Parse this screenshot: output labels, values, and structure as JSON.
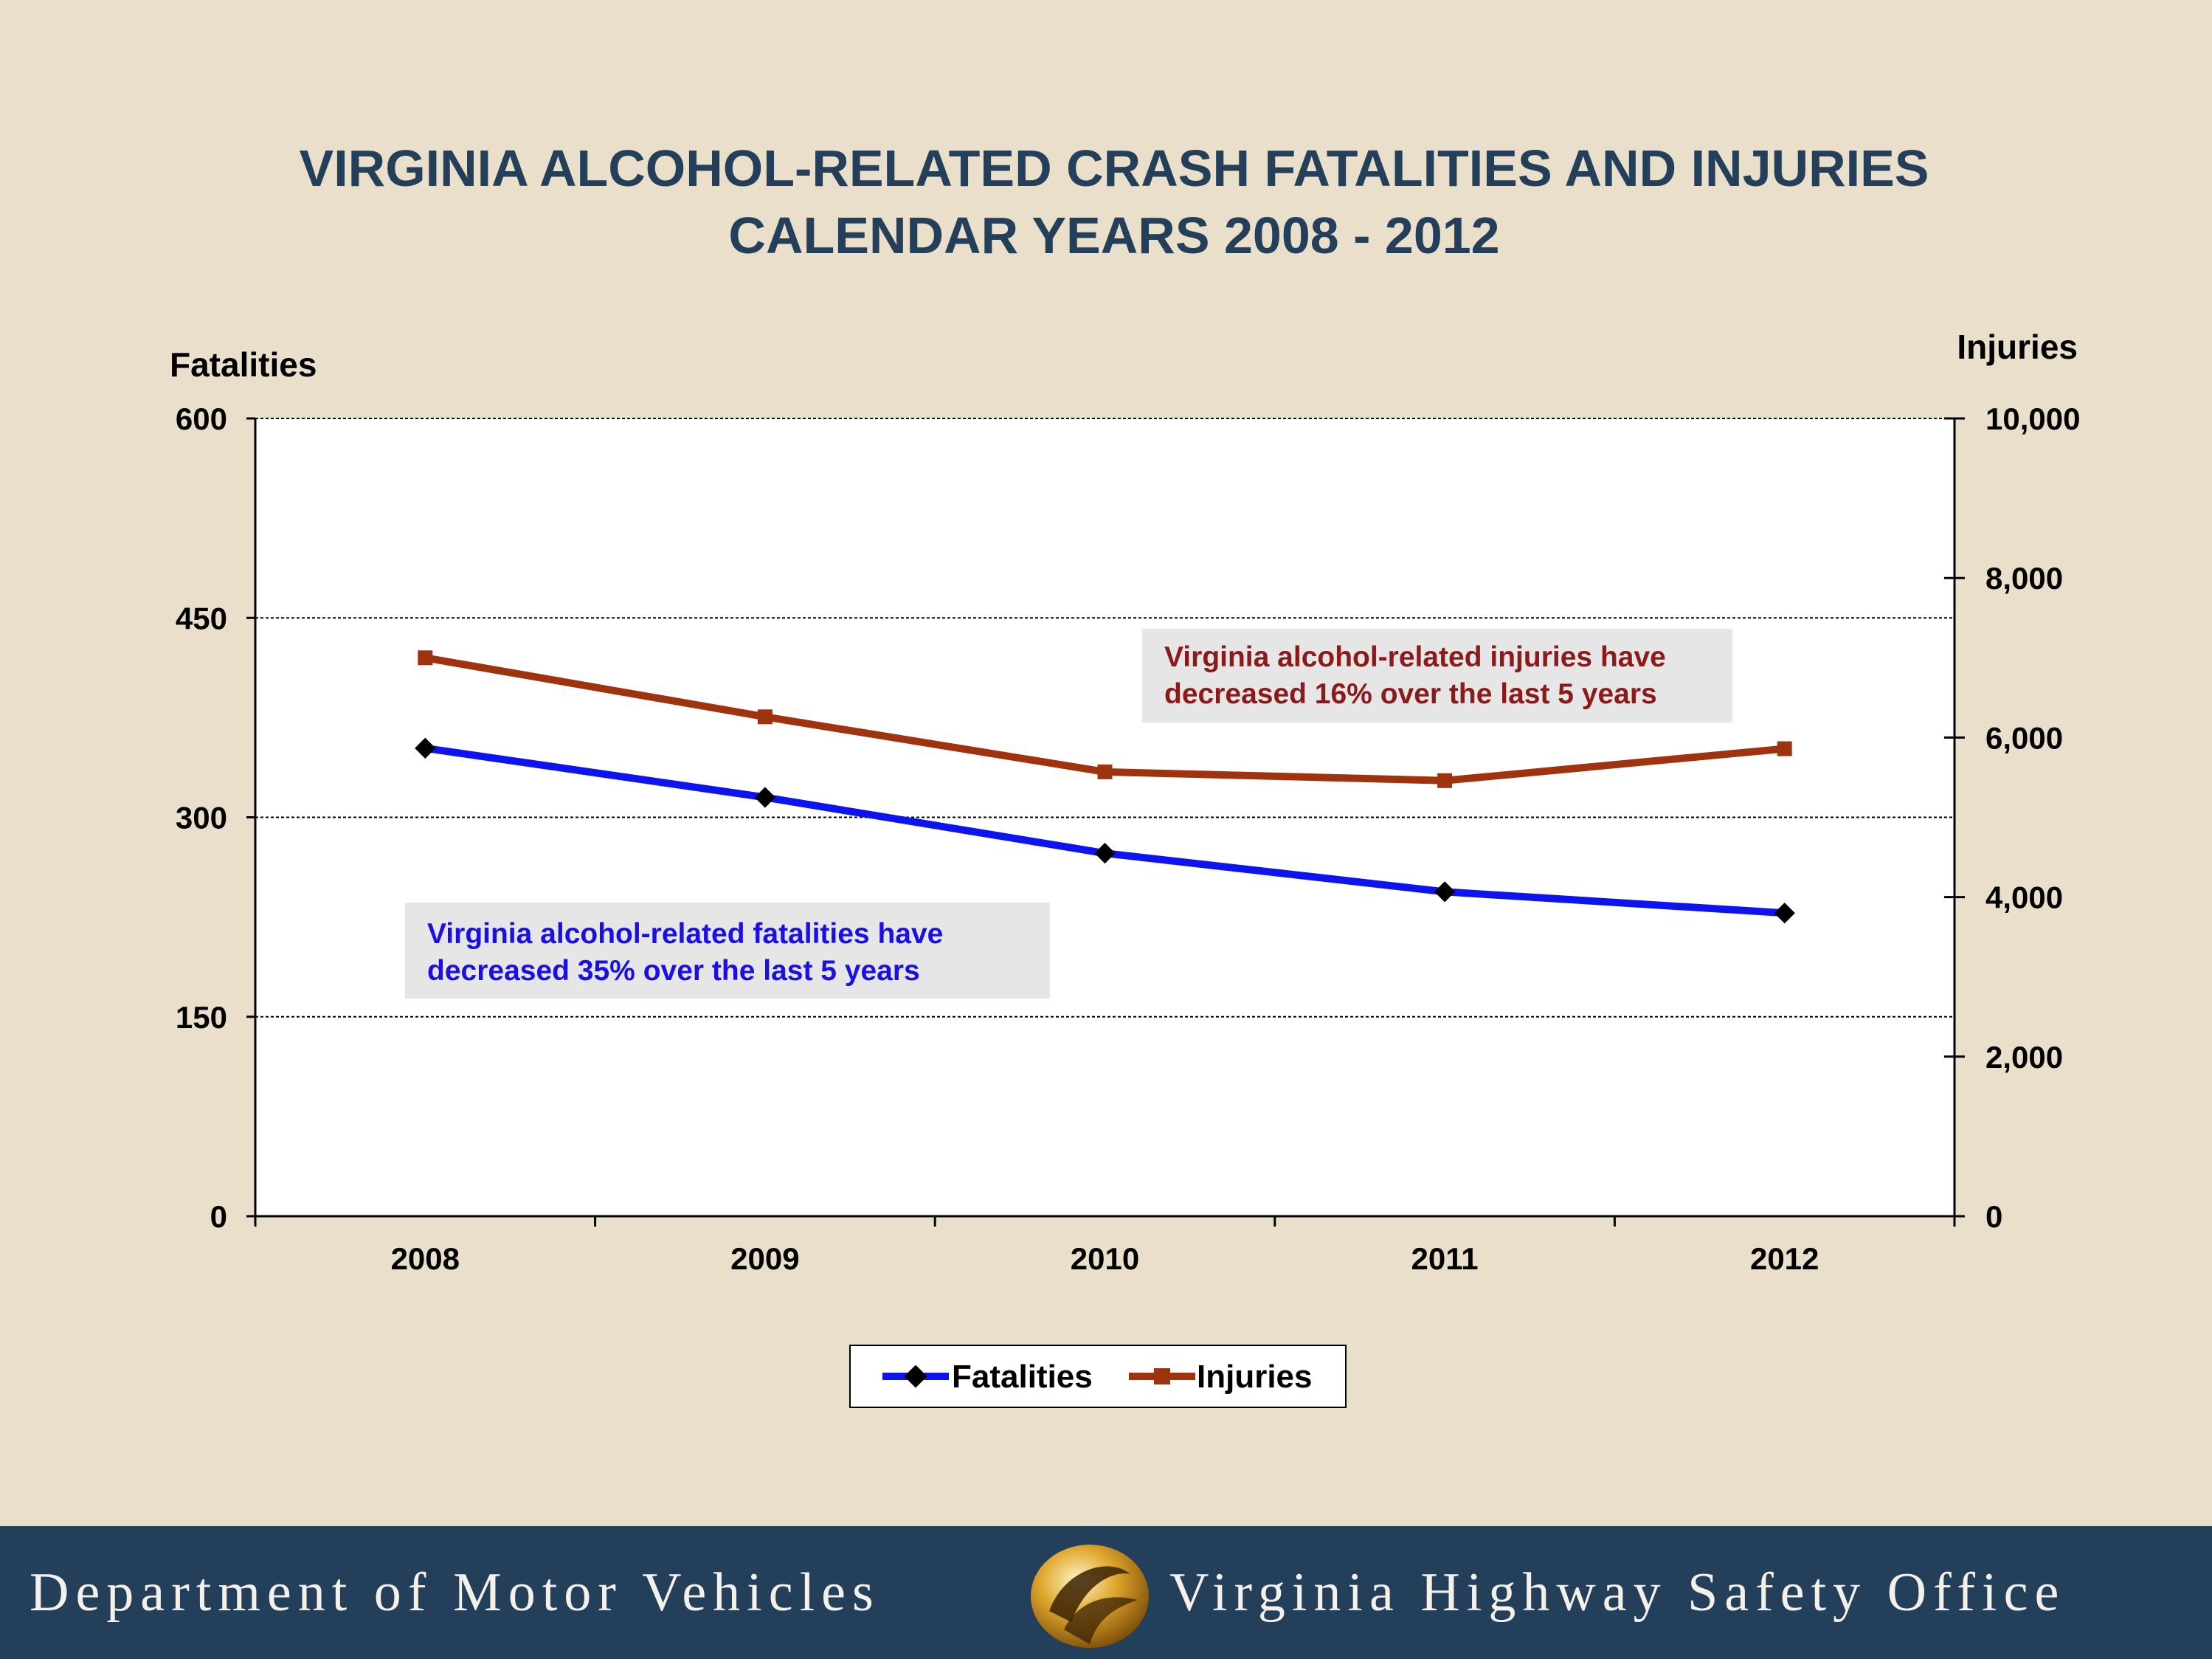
{
  "chart_data": {
    "type": "line",
    "title": "VIRGINIA  ALCOHOL-RELATED CRASH FATALITIES AND INJURIES",
    "subtitle": "CALENDAR YEARS 2008 - 2012",
    "categories": [
      "2008",
      "2009",
      "2010",
      "2011",
      "2012"
    ],
    "y_left": {
      "label": "Fatalities",
      "range": [
        0,
        600
      ],
      "ticks": [
        "0",
        "150",
        "300",
        "450",
        "600"
      ]
    },
    "y_right": {
      "label": "Injuries",
      "range": [
        0,
        10000
      ],
      "ticks": [
        "0",
        "2,000",
        "4,000",
        "6,000",
        "8,000",
        "10,000"
      ]
    },
    "series": [
      {
        "name": "Fatalities",
        "axis": "left",
        "color": "#0d14f0",
        "marker": "diamond",
        "values": [
          352,
          315,
          273,
          244,
          228
        ]
      },
      {
        "name": "Injuries",
        "axis": "right",
        "color": "#a0330f",
        "marker": "square",
        "values": [
          7000,
          6260,
          5570,
          5460,
          5860
        ]
      }
    ],
    "annotations": [
      {
        "series": "Injuries",
        "color": "#8b1a1a",
        "lines": [
          "Virginia alcohol-related injuries have",
          "decreased 16%  over the last 5 years"
        ]
      },
      {
        "series": "Fatalities",
        "color": "#1a10e6",
        "lines": [
          "Virginia alcohol-related fatalities have",
          "decreased  35%  over the last 5 years"
        ]
      }
    ],
    "grid": true,
    "legend": "bottom"
  },
  "footer": {
    "left_text": "Department of Motor Vehicles",
    "right_text": "Virginia Highway Safety Office",
    "logo_icon": "dmv-swirl-logo-icon"
  }
}
